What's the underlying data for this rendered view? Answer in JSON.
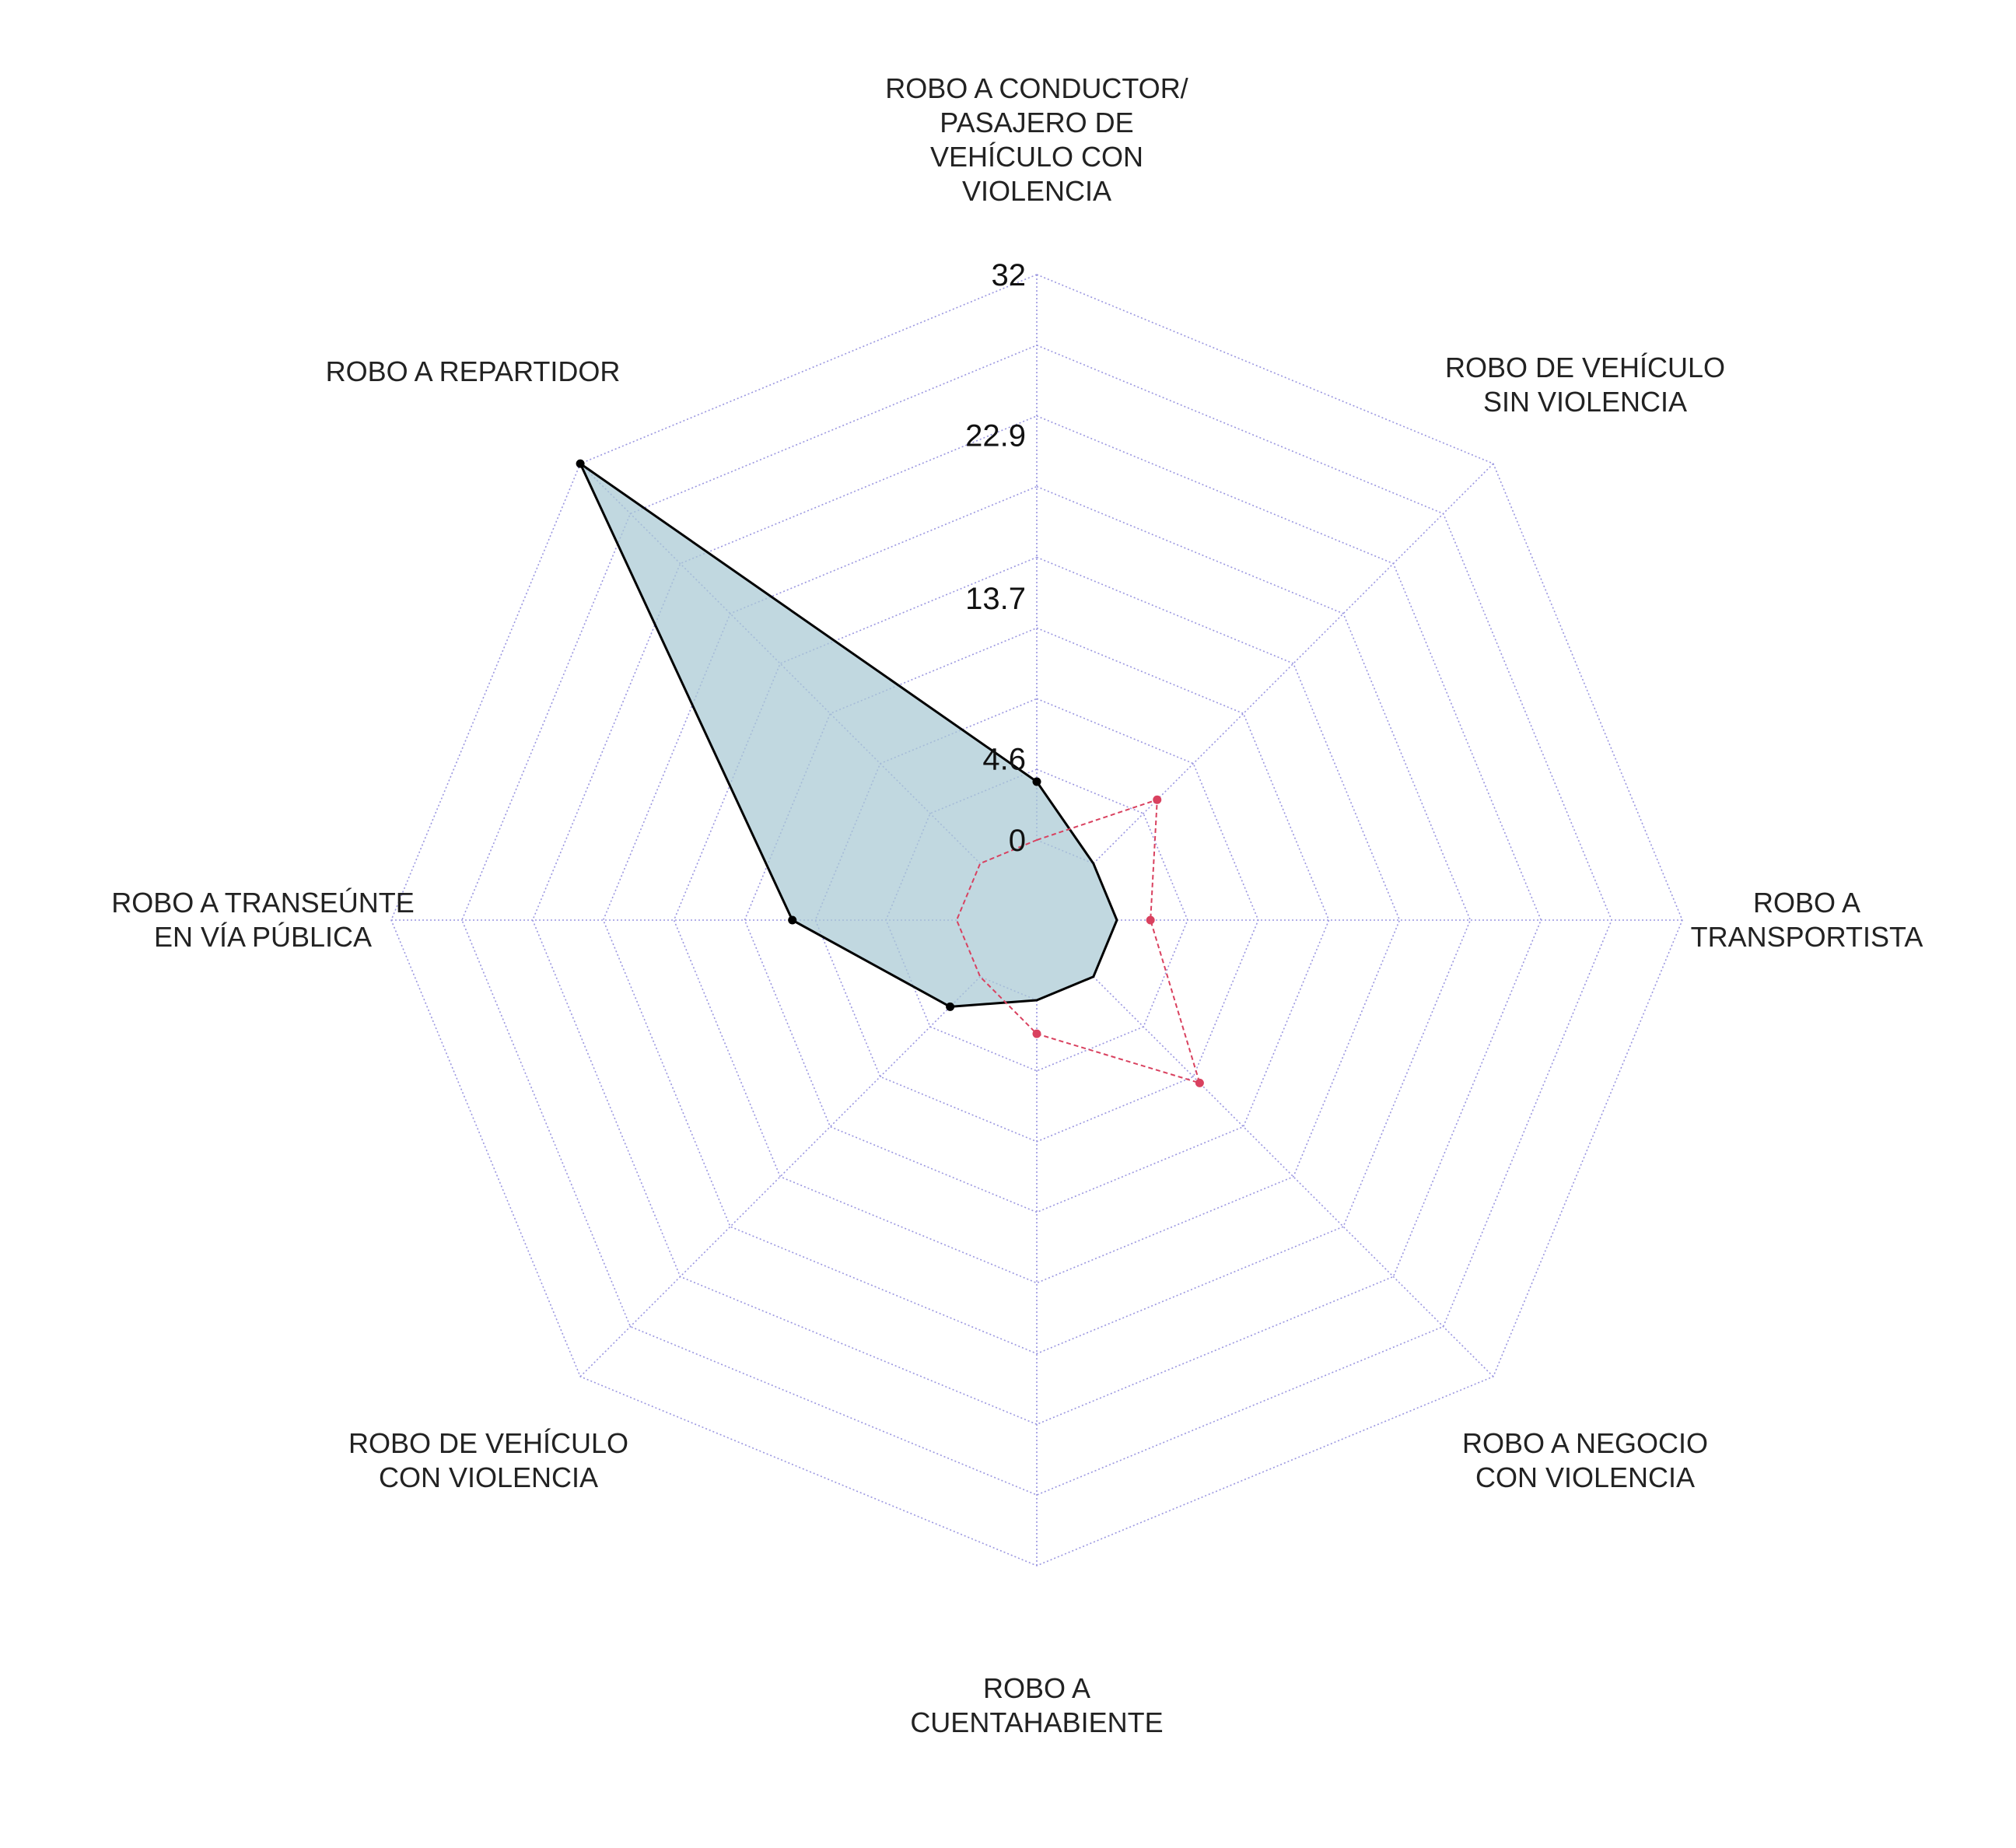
{
  "chart_data": {
    "type": "radar",
    "title": "",
    "axes": [
      "ROBO A CONDUCTOR/\nPASAJERO DE\nVEHÍCULO CON\nVIOLENCIA",
      "ROBO DE VEHÍCULO\nSIN VIOLENCIA",
      "ROBO A\nTRANSPORTISTA",
      "ROBO A NEGOCIO\nCON VIOLENCIA",
      "ROBO A\nCUENTAHABIENTE",
      "ROBO DE VEHÍCULO\nCON VIOLENCIA",
      "ROBO A TRANSEÚNTE\nEN VÍA PÚBLICA",
      "ROBO A REPARTIDOR"
    ],
    "range": [
      0,
      32
    ],
    "grid_rings": 8,
    "tick_labels": [
      "0",
      "4.6",
      "13.7",
      "22.9",
      "32"
    ],
    "tick_values": [
      0,
      4.6,
      13.7,
      22.9,
      32
    ],
    "grid": true,
    "series": [
      {
        "style": "filled-solid",
        "line_color": "#000000",
        "fill_color": "#a9c9d4",
        "values": [
          3.3,
          0,
          0,
          0,
          0,
          2.4,
          9.3,
          32
        ]
      },
      {
        "style": "dashed",
        "line_color": "#d9415f",
        "values": [
          0,
          5.1,
          1.9,
          8.5,
          1.9,
          0,
          0,
          0
        ]
      }
    ]
  }
}
